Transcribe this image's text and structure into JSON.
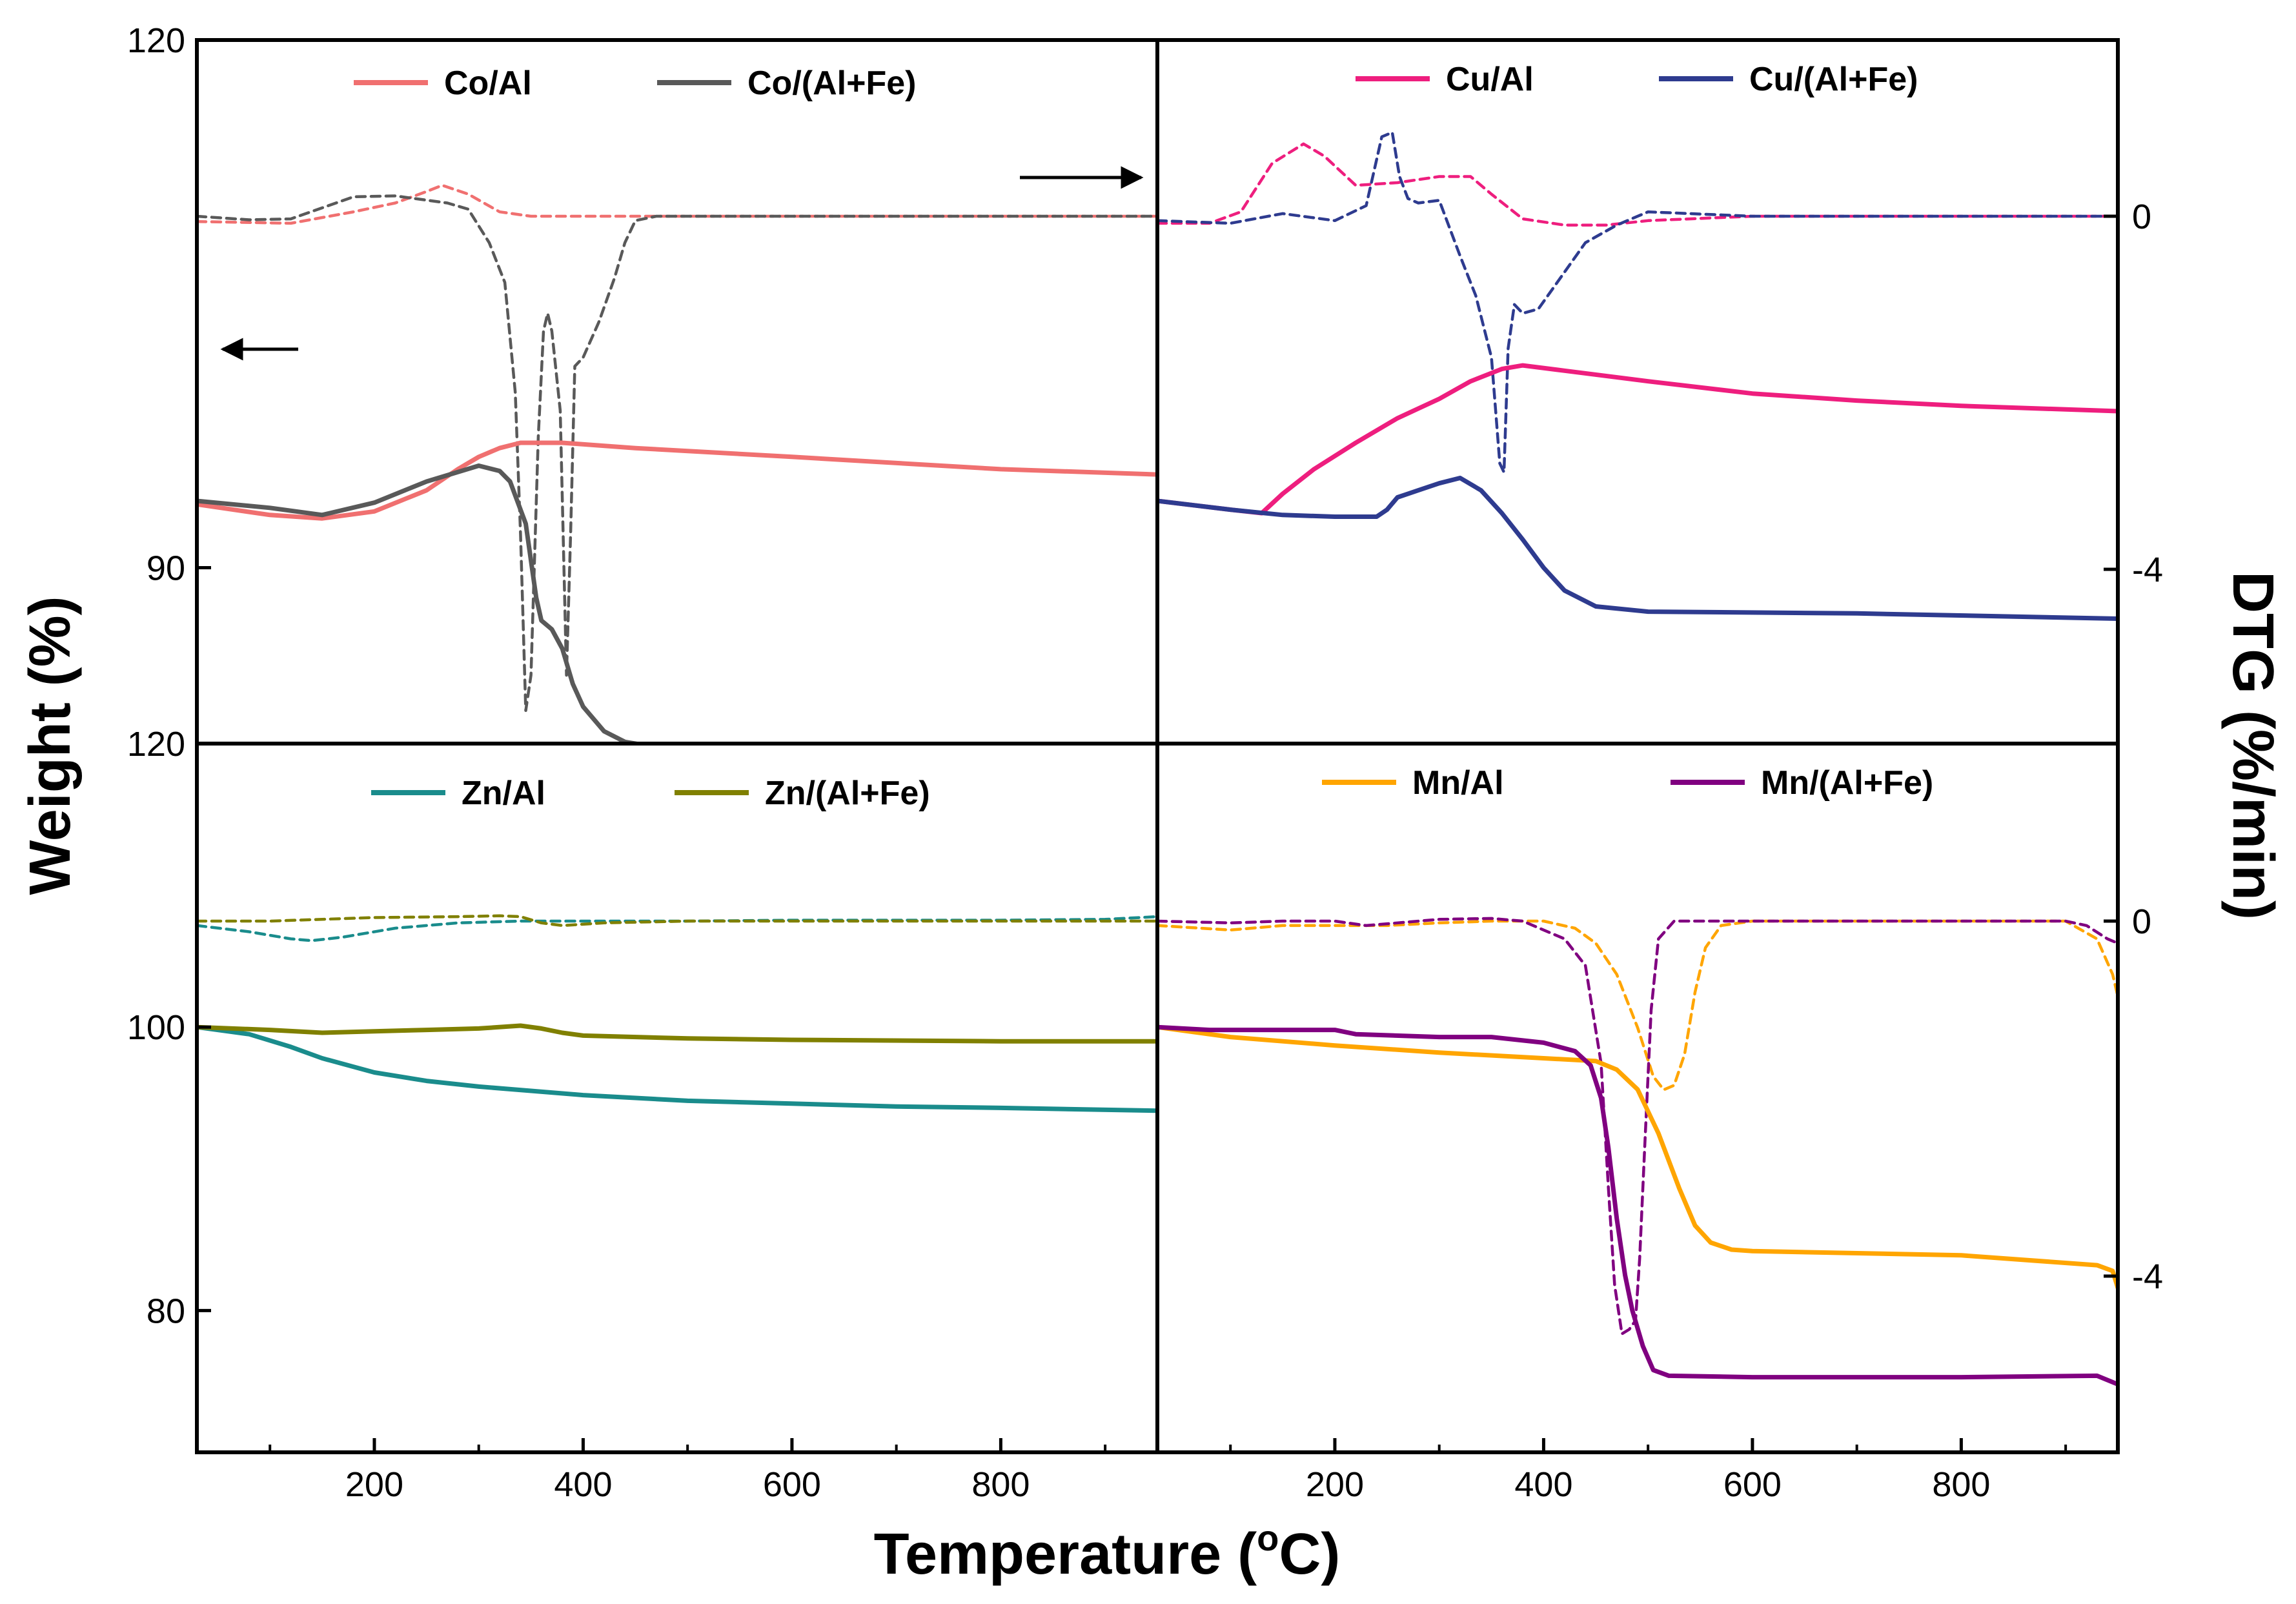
{
  "chart_data": {
    "type": "line",
    "layout": "2x2 panels with shared x axis and shared left/right axes",
    "xlabel": "Temperature (°C)",
    "ylabel": "Weight (%)",
    "y2label": "DTG (%/min)",
    "xlim": [
      30,
      950
    ],
    "xticks": [
      200,
      400,
      600,
      800
    ],
    "x_tick_labels": [
      "200",
      "400",
      "600",
      "800"
    ],
    "legend_note": "solid lines = weight (left axis); dashed lines = DTG (right axis)",
    "panels": [
      {
        "id": "co",
        "position": "top-left",
        "ylim": [
          80,
          120
        ],
        "y_tick_values": [
          120,
          90
        ],
        "y_tick_labels": [
          "120",
          "90"
        ],
        "series": [
          {
            "name": "Co/Al",
            "color": "#f07070",
            "kind": "weight",
            "x": [
              30,
              100,
              150,
              200,
              250,
              280,
              300,
              320,
              340,
              380,
              450,
              600,
              800,
              950
            ],
            "y": [
              93.6,
              93.0,
              92.8,
              93.2,
              94.4,
              95.6,
              96.3,
              96.8,
              97.1,
              97.1,
              96.8,
              96.3,
              95.6,
              95.3
            ]
          },
          {
            "name": "Co/(Al+Fe)",
            "color": "#595959",
            "kind": "weight",
            "x": [
              30,
              100,
              150,
              200,
              250,
              300,
              320,
              330,
              345,
              355,
              360,
              370,
              380,
              390,
              400,
              420,
              440,
              460,
              500,
              700,
              950
            ],
            "y": [
              93.8,
              93.4,
              93.0,
              93.7,
              94.9,
              95.8,
              95.5,
              94.9,
              92.5,
              88.3,
              87.0,
              86.5,
              85.4,
              83.4,
              82.1,
              80.7,
              80.1,
              79.9,
              79.8,
              79.7,
              79.6
            ]
          },
          {
            "name": "Co/Al",
            "color": "#f07070",
            "kind": "dtg",
            "axis": "right",
            "x": [
              30,
              120,
              180,
              220,
              250,
              265,
              290,
              320,
              350,
              400,
              600,
              800,
              950
            ],
            "y": [
              -0.06,
              -0.08,
              0.05,
              0.15,
              0.28,
              0.35,
              0.25,
              0.05,
              0.0,
              0.0,
              0.0,
              0.0,
              0.0
            ]
          },
          {
            "name": "Co/(Al+Fe)",
            "color": "#595959",
            "kind": "dtg",
            "axis": "right",
            "x": [
              30,
              80,
              120,
              180,
              220,
              270,
              290,
              310,
              325,
              335,
              340,
              345,
              350,
              357,
              362,
              366,
              370,
              378,
              384,
              388,
              392,
              400,
              415,
              430,
              440,
              450,
              470,
              600,
              800,
              950
            ],
            "y": [
              0.0,
              -0.04,
              -0.03,
              0.22,
              0.23,
              0.15,
              0.08,
              -0.3,
              -0.75,
              -2.0,
              -3.6,
              -5.6,
              -5.2,
              -2.5,
              -1.3,
              -1.1,
              -1.3,
              -2.2,
              -5.2,
              -3.6,
              -1.7,
              -1.6,
              -1.2,
              -0.7,
              -0.3,
              -0.05,
              0.0,
              0.0,
              0.0,
              0.0
            ]
          }
        ]
      },
      {
        "id": "cu",
        "position": "top-right",
        "ylim": [
          80,
          120
        ],
        "y_tick_values": [],
        "y2_tick_values": [
          0,
          -4
        ],
        "y2_tick_labels": [
          "0",
          "-4"
        ],
        "series": [
          {
            "name": "Cu/Al",
            "color": "#ee1e7e",
            "kind": "weight",
            "x": [
              30,
              100,
              130,
              150,
              180,
              220,
              260,
              300,
              330,
              360,
              380,
              420,
              500,
              600,
              700,
              800,
              950
            ],
            "y": [
              93.8,
              93.3,
              93.1,
              94.2,
              95.6,
              97.1,
              98.5,
              99.6,
              100.6,
              101.3,
              101.5,
              101.2,
              100.6,
              99.9,
              99.5,
              99.2,
              98.9
            ]
          },
          {
            "name": "Cu/(Al+Fe)",
            "color": "#2e3b8f",
            "kind": "weight",
            "x": [
              30,
              100,
              150,
              200,
              240,
              250,
              260,
              280,
              300,
              320,
              340,
              360,
              380,
              400,
              420,
              450,
              500,
              700,
              950
            ],
            "y": [
              93.8,
              93.3,
              93.0,
              92.9,
              92.9,
              93.3,
              94.0,
              94.4,
              94.8,
              95.1,
              94.4,
              93.1,
              91.6,
              90.0,
              88.7,
              87.8,
              87.5,
              87.4,
              87.1
            ]
          },
          {
            "name": "Cu/Al",
            "color": "#ee1e7e",
            "kind": "dtg",
            "axis": "right",
            "x": [
              30,
              80,
              110,
              140,
              170,
              190,
              220,
              260,
              300,
              330,
              350,
              380,
              420,
              460,
              500,
              600,
              800,
              950
            ],
            "y": [
              -0.08,
              -0.08,
              0.05,
              0.6,
              0.82,
              0.68,
              0.35,
              0.38,
              0.45,
              0.45,
              0.25,
              -0.03,
              -0.1,
              -0.1,
              -0.05,
              0.0,
              0.0,
              0.0
            ]
          },
          {
            "name": "Cu/(Al+Fe)",
            "color": "#2e3b8f",
            "kind": "dtg",
            "axis": "right",
            "x": [
              30,
              100,
              150,
              200,
              230,
              245,
              255,
              262,
              270,
              280,
              300,
              320,
              335,
              350,
              358,
              362,
              366,
              372,
              380,
              395,
              410,
              440,
              470,
              500,
              600,
              700,
              800,
              950
            ],
            "y": [
              -0.05,
              -0.08,
              0.03,
              -0.05,
              0.12,
              0.9,
              0.95,
              0.45,
              0.2,
              0.15,
              0.18,
              -0.45,
              -0.9,
              -1.6,
              -2.8,
              -2.9,
              -1.5,
              -1.0,
              -1.1,
              -1.05,
              -0.8,
              -0.3,
              -0.1,
              0.05,
              0.0,
              0.0,
              0.0,
              0.0
            ]
          }
        ]
      },
      {
        "id": "zn",
        "position": "bottom-left",
        "ylim": [
          70,
          120
        ],
        "y_tick_values": [
          120,
          100,
          80
        ],
        "y_tick_labels": [
          "120",
          "100",
          "80"
        ],
        "series": [
          {
            "name": "Zn/Al",
            "color": "#1a8c8c",
            "kind": "weight",
            "x": [
              30,
              80,
              120,
              150,
              200,
              250,
              300,
              350,
              400,
              500,
              600,
              700,
              800,
              950
            ],
            "y": [
              100.0,
              99.5,
              98.6,
              97.8,
              96.8,
              96.2,
              95.8,
              95.5,
              95.2,
              94.8,
              94.6,
              94.4,
              94.3,
              94.1
            ]
          },
          {
            "name": "Zn/(Al+Fe)",
            "color": "#808000",
            "kind": "weight",
            "x": [
              30,
              100,
              150,
              200,
              250,
              300,
              340,
              360,
              380,
              400,
              500,
              600,
              800,
              950
            ],
            "y": [
              100.0,
              99.8,
              99.6,
              99.7,
              99.8,
              99.9,
              100.1,
              99.9,
              99.6,
              99.4,
              99.2,
              99.1,
              99.0,
              99.0
            ]
          },
          {
            "name": "Zn/Al",
            "color": "#1a8c8c",
            "kind": "dtg",
            "axis": "right",
            "x": [
              30,
              80,
              120,
              140,
              170,
              220,
              280,
              340,
              400,
              500,
              600,
              700,
              800,
              900,
              950
            ],
            "y": [
              -0.05,
              -0.12,
              -0.2,
              -0.22,
              -0.18,
              -0.08,
              -0.02,
              0.0,
              0.0,
              0.0,
              0.01,
              0.01,
              0.01,
              0.02,
              0.05
            ]
          },
          {
            "name": "Zn/(Al+Fe)",
            "color": "#808000",
            "kind": "dtg",
            "axis": "right",
            "x": [
              30,
              100,
              200,
              280,
              320,
              340,
              360,
              380,
              420,
              500,
              600,
              800,
              950
            ],
            "y": [
              0.0,
              0.0,
              0.04,
              0.05,
              0.06,
              0.05,
              -0.02,
              -0.05,
              -0.02,
              0.0,
              0.0,
              0.0,
              0.0
            ]
          }
        ]
      },
      {
        "id": "mn",
        "position": "bottom-right",
        "ylim": [
          70,
          120
        ],
        "y_tick_values": [],
        "y2_tick_values": [
          0,
          -4
        ],
        "y2_tick_labels": [
          "0",
          "-4"
        ],
        "series": [
          {
            "name": "Mn/Al",
            "color": "#ffa500",
            "kind": "weight",
            "x": [
              30,
              100,
              200,
              300,
              400,
              450,
              470,
              490,
              510,
              530,
              545,
              560,
              580,
              600,
              800,
              930,
              945,
              950
            ],
            "y": [
              100.0,
              99.3,
              98.7,
              98.2,
              97.8,
              97.6,
              97.0,
              95.6,
              92.5,
              88.6,
              86.0,
              84.8,
              84.3,
              84.2,
              83.9,
              83.2,
              82.8,
              81.6
            ]
          },
          {
            "name": "Mn/(Al+Fe)",
            "color": "#800080",
            "kind": "weight",
            "x": [
              30,
              80,
              200,
              220,
              300,
              350,
              400,
              430,
              445,
              455,
              462,
              470,
              478,
              485,
              495,
              505,
              520,
              600,
              800,
              930,
              950
            ],
            "y": [
              100.0,
              99.8,
              99.8,
              99.5,
              99.3,
              99.3,
              98.9,
              98.3,
              97.3,
              95.0,
              91.5,
              86.5,
              82.5,
              80.0,
              77.5,
              75.8,
              75.4,
              75.3,
              75.3,
              75.4,
              74.8
            ]
          },
          {
            "name": "Mn/Al",
            "color": "#ffa500",
            "kind": "dtg",
            "axis": "right",
            "x": [
              30,
              100,
              150,
              200,
              250,
              300,
              350,
              380,
              400,
              430,
              450,
              470,
              490,
              505,
              515,
              525,
              535,
              545,
              555,
              570,
              600,
              700,
              800,
              900,
              930,
              945,
              950
            ],
            "y": [
              -0.05,
              -0.1,
              -0.05,
              -0.05,
              -0.05,
              -0.02,
              0.0,
              0.0,
              0.0,
              -0.08,
              -0.25,
              -0.6,
              -1.2,
              -1.75,
              -1.9,
              -1.85,
              -1.5,
              -0.8,
              -0.3,
              -0.05,
              0.0,
              0.0,
              0.0,
              0.0,
              -0.2,
              -0.6,
              -0.85
            ]
          },
          {
            "name": "Mn/(Al+Fe)",
            "color": "#800080",
            "kind": "dtg",
            "axis": "right",
            "x": [
              30,
              100,
              150,
              200,
              230,
              300,
              350,
              380,
              400,
              420,
              440,
              455,
              462,
              468,
              475,
              482,
              488,
              492,
              497,
              503,
              510,
              525,
              550,
              600,
              800,
              900,
              920,
              940,
              950
            ],
            "y": [
              0.0,
              -0.02,
              0.0,
              0.0,
              -0.05,
              0.02,
              0.03,
              0.0,
              -0.1,
              -0.2,
              -0.5,
              -1.6,
              -3.0,
              -4.1,
              -4.65,
              -4.6,
              -4.5,
              -3.8,
              -2.5,
              -1.0,
              -0.2,
              0.0,
              0.0,
              0.0,
              0.0,
              0.0,
              -0.05,
              -0.2,
              -0.25
            ]
          }
        ]
      }
    ],
    "legends": [
      {
        "panel": "co",
        "items": [
          "Co/Al",
          "Co/(Al+Fe)"
        ]
      },
      {
        "panel": "cu",
        "items": [
          "Cu/Al",
          "Cu/(Al+Fe)"
        ]
      },
      {
        "panel": "zn",
        "items": [
          "Zn/Al",
          "Zn/(Al+Fe)"
        ]
      },
      {
        "panel": "mn",
        "items": [
          "Mn/Al",
          "Mn/(Al+Fe)"
        ]
      }
    ]
  }
}
